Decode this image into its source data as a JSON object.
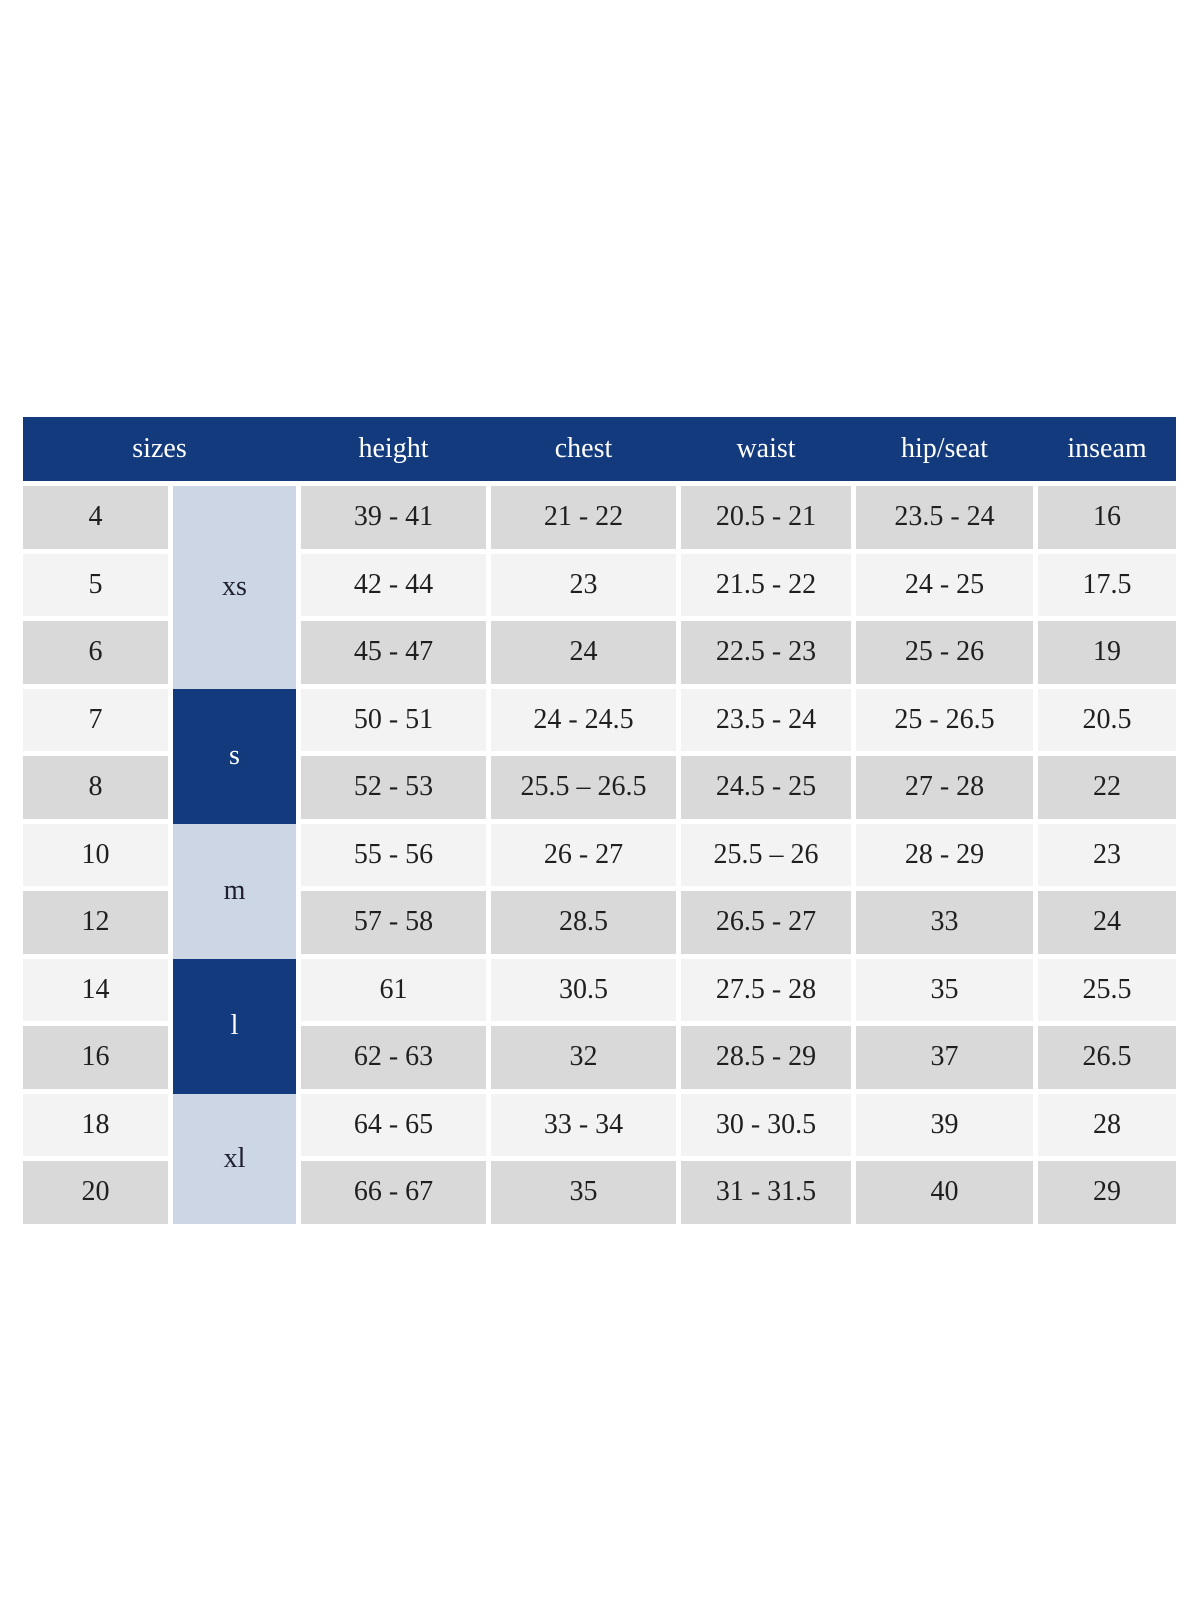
{
  "chart_data": {
    "type": "table",
    "headers": {
      "sizes": "sizes",
      "height": "height",
      "chest": "chest",
      "waist": "waist",
      "hip_seat": "hip/seat",
      "inseam": "inseam"
    },
    "size_groups": [
      {
        "label": "xs",
        "row_span": 3,
        "fill": "light_blue"
      },
      {
        "label": "s",
        "row_span": 2,
        "fill": "navy"
      },
      {
        "label": "m",
        "row_span": 2,
        "fill": "light_blue"
      },
      {
        "label": "l",
        "row_span": 2,
        "fill": "navy"
      },
      {
        "label": "xl",
        "row_span": 2,
        "fill": "light_blue"
      }
    ],
    "rows": [
      {
        "size": "4",
        "group": "xs",
        "height": "39 - 41",
        "chest": "21 - 22",
        "waist": "20.5 - 21",
        "hip_seat": "23.5 - 24",
        "inseam": "16"
      },
      {
        "size": "5",
        "group": "xs",
        "height": "42 - 44",
        "chest": "23",
        "waist": "21.5 - 22",
        "hip_seat": "24 - 25",
        "inseam": "17.5"
      },
      {
        "size": "6",
        "group": "xs",
        "height": "45 - 47",
        "chest": "24",
        "waist": "22.5 - 23",
        "hip_seat": "25 - 26",
        "inseam": "19"
      },
      {
        "size": "7",
        "group": "s",
        "height": "50 - 51",
        "chest": "24 - 24.5",
        "waist": "23.5 - 24",
        "hip_seat": "25 - 26.5",
        "inseam": "20.5"
      },
      {
        "size": "8",
        "group": "s",
        "height": "52 - 53",
        "chest": "25.5 – 26.5",
        "waist": "24.5 - 25",
        "hip_seat": "27 - 28",
        "inseam": "22"
      },
      {
        "size": "10",
        "group": "m",
        "height": "55 - 56",
        "chest": "26 - 27",
        "waist": "25.5 – 26",
        "hip_seat": "28 - 29",
        "inseam": "23"
      },
      {
        "size": "12",
        "group": "m",
        "height": "57 - 58",
        "chest": "28.5",
        "waist": "26.5 - 27",
        "hip_seat": "33",
        "inseam": "24"
      },
      {
        "size": "14",
        "group": "l",
        "height": "61",
        "chest": "30.5",
        "waist": "27.5 - 28",
        "hip_seat": "35",
        "inseam": "25.5"
      },
      {
        "size": "16",
        "group": "l",
        "height": "62 - 63",
        "chest": "32",
        "waist": "28.5 - 29",
        "hip_seat": "37",
        "inseam": "26.5"
      },
      {
        "size": "18",
        "group": "xl",
        "height": "64 - 65",
        "chest": "33 - 34",
        "waist": "30 - 30.5",
        "hip_seat": "39",
        "inseam": "28"
      },
      {
        "size": "20",
        "group": "xl",
        "height": "66 - 67",
        "chest": "35",
        "waist": "31 - 31.5",
        "hip_seat": "40",
        "inseam": "29"
      }
    ],
    "layout": {
      "grid": "off",
      "row_shading": [
        "gray",
        "white-alternating"
      ]
    }
  },
  "colors": {
    "navy": "#123a7c",
    "light_blue": "#ccd6e5",
    "row_gray": "#d9d9d9",
    "row_light": "#f3f3f3",
    "header_text": "#ffffff",
    "body_text": "#1f1f1f",
    "background": "#ffffff"
  }
}
